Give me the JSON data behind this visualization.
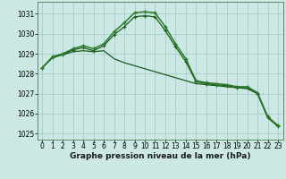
{
  "title": "Graphe pression niveau de la mer (hPa)",
  "bg_color": "#cce8e4",
  "grid_color": "#aacccc",
  "line_color_dark": "#1a5c1a",
  "line_color_mid": "#2a7a2a",
  "xlim": [
    -0.5,
    23.5
  ],
  "ylim": [
    1024.7,
    1031.6
  ],
  "yticks": [
    1025,
    1026,
    1027,
    1028,
    1029,
    1030,
    1031
  ],
  "xticks": [
    0,
    1,
    2,
    3,
    4,
    5,
    6,
    7,
    8,
    9,
    10,
    11,
    12,
    13,
    14,
    15,
    16,
    17,
    18,
    19,
    20,
    21,
    22,
    23
  ],
  "series_peak": [
    1028.3,
    1028.85,
    1029.0,
    1029.25,
    1029.4,
    1029.25,
    1029.5,
    1030.1,
    1030.55,
    1031.05,
    1031.1,
    1031.05,
    1030.35,
    1029.5,
    1028.75,
    1027.65,
    1027.55,
    1027.5,
    1027.45,
    1027.35,
    1027.35,
    1027.05,
    1025.85,
    1025.4
  ],
  "series_peak2": [
    1028.3,
    1028.8,
    1028.95,
    1029.2,
    1029.3,
    1029.15,
    1029.4,
    1029.95,
    1030.35,
    1030.85,
    1030.9,
    1030.85,
    1030.15,
    1029.35,
    1028.6,
    1027.6,
    1027.5,
    1027.45,
    1027.4,
    1027.3,
    1027.3,
    1027.0,
    1025.8,
    1025.35
  ],
  "series_flat": [
    1028.3,
    1028.85,
    1028.95,
    1029.1,
    1029.15,
    1029.1,
    1029.15,
    1028.75,
    1028.55,
    1028.4,
    1028.25,
    1028.1,
    1027.95,
    1027.8,
    1027.65,
    1027.5,
    1027.45,
    1027.4,
    1027.35,
    1027.3,
    1027.25,
    1027.0,
    1025.8,
    1025.4
  ],
  "title_fontsize": 6.5,
  "tick_fontsize": 5.5
}
